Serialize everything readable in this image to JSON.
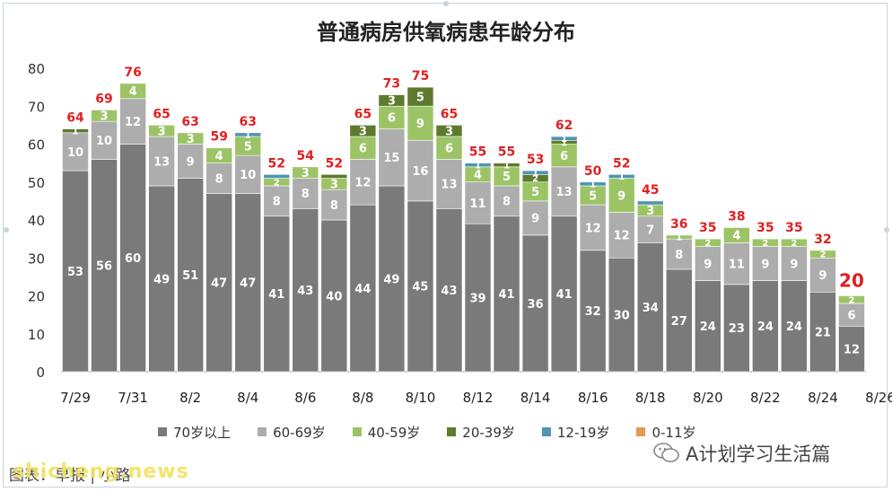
{
  "page": {
    "title": "普通病房供氧病患年龄分布",
    "footer_left": "图表：早报 | 小路",
    "watermark": "shicheng.news",
    "source_account": "A计划学习生活篇"
  },
  "chart_data": {
    "type": "bar",
    "stacked": true,
    "title": "普通病房供氧病患年龄分布",
    "xlabel": "",
    "ylabel": "",
    "ylim": [
      0,
      80
    ],
    "yticks": [
      0,
      10,
      20,
      30,
      40,
      50,
      60,
      70,
      80
    ],
    "grid": false,
    "legend_position": "bottom",
    "x_tick_labels": [
      "7/29",
      "7/31",
      "8/2",
      "8/4",
      "8/6",
      "8/8",
      "8/10",
      "8/12",
      "8/14",
      "8/16",
      "8/18",
      "8/20",
      "8/22",
      "8/24",
      "8/26"
    ],
    "categories": [
      "7/29",
      "7/30",
      "7/31",
      "8/1",
      "8/2",
      "8/3",
      "8/4",
      "8/5",
      "8/6",
      "8/7",
      "8/8",
      "8/9",
      "8/10",
      "8/11",
      "8/12",
      "8/13",
      "8/14",
      "8/15",
      "8/16",
      "8/17",
      "8/18",
      "8/19",
      "8/20",
      "8/21",
      "8/22",
      "8/23",
      "8/24",
      "8/25"
    ],
    "totals": [
      64,
      69,
      76,
      65,
      63,
      59,
      63,
      52,
      54,
      52,
      65,
      73,
      75,
      65,
      55,
      55,
      53,
      62,
      50,
      52,
      45,
      36,
      35,
      38,
      35,
      35,
      32,
      20
    ],
    "series": [
      {
        "name": "70岁以上",
        "color": "#7a7a7a",
        "values": [
          53,
          56,
          60,
          49,
          51,
          47,
          47,
          41,
          43,
          40,
          44,
          49,
          45,
          43,
          39,
          41,
          36,
          41,
          32,
          30,
          34,
          27,
          24,
          23,
          24,
          24,
          21,
          12
        ]
      },
      {
        "name": "60-69岁",
        "color": "#adadad",
        "values": [
          10,
          10,
          12,
          13,
          9,
          8,
          10,
          8,
          8,
          8,
          12,
          15,
          16,
          13,
          11,
          8,
          9,
          13,
          12,
          12,
          7,
          8,
          9,
          11,
          9,
          9,
          9,
          6
        ]
      },
      {
        "name": "40-59岁",
        "color": "#9cc466",
        "values": [
          0,
          3,
          4,
          3,
          3,
          4,
          5,
          2,
          3,
          3,
          6,
          6,
          9,
          6,
          4,
          5,
          5,
          6,
          5,
          9,
          3,
          1,
          2,
          4,
          2,
          2,
          2,
          2
        ]
      },
      {
        "name": "20-39岁",
        "color": "#5e7a2e",
        "values": [
          1,
          0,
          0,
          0,
          0,
          0,
          0,
          0,
          0,
          1,
          3,
          3,
          5,
          3,
          0,
          1,
          2,
          1,
          0,
          0,
          0,
          0,
          0,
          0,
          0,
          0,
          0,
          0
        ]
      },
      {
        "name": "12-19岁",
        "color": "#4f94b3",
        "values": [
          0,
          0,
          0,
          0,
          0,
          0,
          1,
          1,
          0,
          0,
          0,
          0,
          0,
          0,
          1,
          0,
          1,
          1,
          1,
          1,
          1,
          0,
          0,
          0,
          0,
          0,
          0,
          0
        ]
      },
      {
        "name": "0-11岁",
        "color": "#e39a52",
        "values": [
          0,
          0,
          0,
          0,
          0,
          0,
          0,
          0,
          0,
          0,
          0,
          0,
          0,
          0,
          0,
          0,
          0,
          0,
          0,
          0,
          0,
          0,
          0,
          0,
          0,
          0,
          0,
          0
        ]
      }
    ],
    "segment_labels": [
      [
        "53",
        "56",
        "60",
        "49",
        "51",
        "47",
        "47",
        "41",
        "43",
        "40",
        "44",
        "49",
        "45",
        "43",
        "39",
        "41",
        "36",
        "41",
        "32",
        "30",
        "34",
        "27",
        "24",
        "23",
        "24",
        "24",
        "21",
        "12"
      ],
      [
        "10",
        "10",
        "12",
        "13",
        "9",
        "8",
        "10",
        "8",
        "8",
        "8",
        "12",
        "15",
        "16",
        "13",
        "11",
        "8",
        "9",
        "13",
        "12",
        "12",
        "7",
        "8",
        "9",
        "11",
        "9",
        "9",
        "9",
        "6"
      ],
      [
        "",
        "3",
        "4",
        "3",
        "3",
        "4",
        "5",
        "2",
        "3",
        "3",
        "6",
        "6",
        "9",
        "6",
        "4",
        "5",
        "5",
        "6",
        "5",
        "9",
        "3",
        "1",
        "2",
        "4",
        "2",
        "2",
        "2",
        "2"
      ],
      [
        "1",
        "",
        "",
        "",
        "",
        "",
        "",
        "",
        "",
        "",
        "3",
        "3",
        "5",
        "3",
        "",
        "1",
        "2",
        "1",
        "",
        "",
        "",
        "",
        "",
        "",
        "",
        "",
        "",
        ""
      ],
      [
        "",
        "",
        "",
        "",
        "",
        "",
        "1",
        "",
        "",
        "",
        "",
        "",
        "",
        "",
        "1",
        "",
        "1",
        "1",
        "1",
        "1",
        "",
        "",
        "",
        "",
        "",
        "",
        "",
        ""
      ],
      [
        "",
        "",
        "",
        "",
        "",
        "",
        "",
        "",
        "",
        "",
        "",
        "",
        "",
        "",
        "",
        "",
        "",
        "",
        "",
        "",
        "",
        "",
        "",
        "",
        "",
        "",
        "",
        ""
      ]
    ],
    "total_label_color": "#e02020"
  }
}
